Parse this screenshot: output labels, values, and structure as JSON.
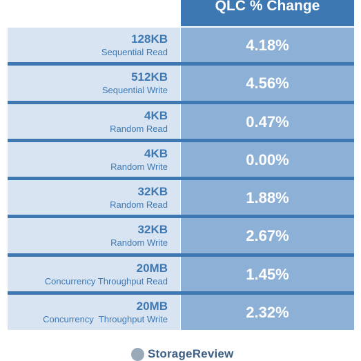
{
  "chart_data": {
    "type": "table",
    "column_header": "QLC % Change",
    "rows": [
      {
        "size": "128KB",
        "operation": "Sequential Read",
        "value": "4.18%"
      },
      {
        "size": "512KB",
        "operation": "Sequential Write",
        "value": "4.56%"
      },
      {
        "size": "4KB",
        "operation": "Random Read",
        "value": "0.47%"
      },
      {
        "size": "4KB",
        "operation": "Random Write",
        "value": "0.00%"
      },
      {
        "size": "32KB",
        "operation": "Random Read",
        "value": "1.88%"
      },
      {
        "size": "32KB",
        "operation": "Random Write",
        "value": "2.67%"
      },
      {
        "size": "20MB",
        "operation": "Concurrency Throughput Read",
        "value": "1.45%"
      },
      {
        "size": "20MB",
        "operation": "Concurrency  Throughput Write",
        "value": "2.32%"
      }
    ]
  },
  "branding": {
    "logo_text": "StorageReview",
    "logo_icon": "storagereview-logo-icon"
  }
}
